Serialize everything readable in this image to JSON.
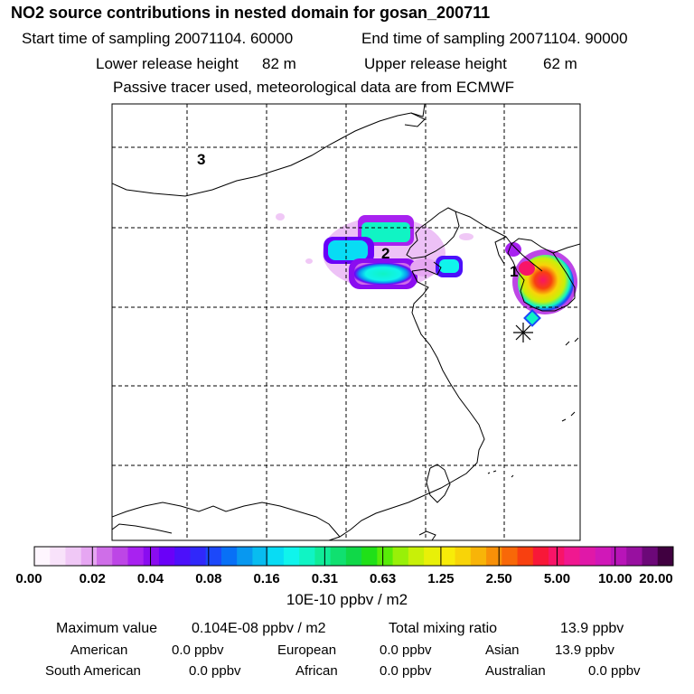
{
  "title": "NO2 source contributions in nested domain for gosan_200711",
  "sampling": {
    "start_label": "Start time of sampling 20071104. 60000",
    "end_label": "End time of sampling 20071104. 90000"
  },
  "release": {
    "lower_label": "Lower release height",
    "lower_value": "82 m",
    "upper_label": "Upper release height",
    "upper_value": "62 m"
  },
  "note": "Passive tracer used, meteorological data are from ECMWF",
  "map": {
    "region_labels": [
      "1",
      "2",
      "3"
    ],
    "receptor_marker": "asterisk-station-marker"
  },
  "colorbar": {
    "tick_labels": [
      "0.00",
      "0.02",
      "0.04",
      "0.08",
      "0.16",
      "0.31",
      "0.63",
      "1.25",
      "2.50",
      "5.00",
      "10.00",
      "20.00"
    ],
    "colors": [
      "#fef6fe",
      "#f8e2fa",
      "#f0c8f6",
      "#e6a6f2",
      "#cf6ee8",
      "#bd46e6",
      "#a822f0",
      "#8a0cf0",
      "#6a00f8",
      "#4c10fa",
      "#3028fa",
      "#1c48fa",
      "#0870f6",
      "#0898f0",
      "#08bcf0",
      "#08dcf4",
      "#10f4ec",
      "#10f4c4",
      "#10ec98",
      "#10e070",
      "#10d848",
      "#20e018",
      "#58ec08",
      "#98f008",
      "#c8f008",
      "#e8f008",
      "#f8ec08",
      "#f8d408",
      "#f8b408",
      "#f89008",
      "#f86808",
      "#f84010",
      "#f81838",
      "#f81468",
      "#f01890",
      "#e018a8",
      "#d018b8",
      "#b814b8",
      "#9810a0",
      "#6c0878",
      "#400040"
    ],
    "unit": "10E-10 ppbv / m2"
  },
  "summary": {
    "max_label": "Maximum value",
    "max_value": "0.104E-08 ppbv / m2",
    "total_label": "Total mixing ratio",
    "total_value": "13.9 ppbv",
    "contributions": [
      {
        "region": "American",
        "value": "0.0 ppbv"
      },
      {
        "region": "European",
        "value": "0.0 ppbv"
      },
      {
        "region": "Asian",
        "value": "13.9 ppbv"
      },
      {
        "region": "South American",
        "value": "0.0 ppbv"
      },
      {
        "region": "African",
        "value": "0.0 ppbv"
      },
      {
        "region": "Australian",
        "value": "0.0 ppbv"
      }
    ]
  }
}
